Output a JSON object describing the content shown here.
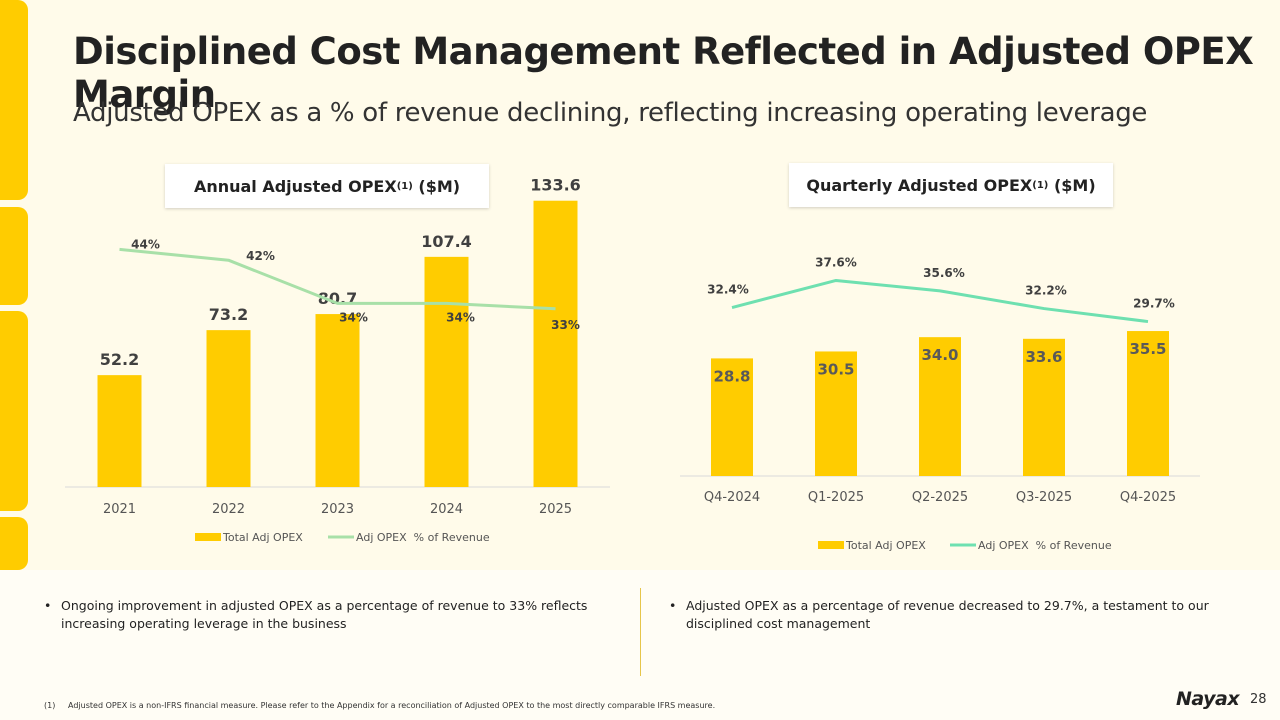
{
  "title": "Disciplined Cost Management Reflected in Adjusted OPEX Margin",
  "subtitle": "Adjusted OPEX as a % of revenue declining, reflecting increasing operating leverage",
  "panels": {
    "annual_title": "Annual Adjusted OPEX",
    "annual_sup": "(1)",
    "annual_unit": " ($M)",
    "quarterly_title": "Quarterly Adjusted OPEX",
    "quarterly_sup": "(1)",
    "quarterly_unit": " ($M)"
  },
  "chart_data": [
    {
      "type": "bar",
      "title": "Annual Adjusted OPEX(1) ($M)",
      "categories": [
        "2021",
        "2022",
        "2023",
        "2024",
        "2025"
      ],
      "series": [
        {
          "name": "Total Adj OPEX",
          "kind": "bar",
          "values": [
            52.2,
            73.2,
            80.7,
            107.4,
            133.6
          ],
          "labels": [
            "52.2",
            "73.2",
            "80.7",
            "107.4",
            "133.6"
          ]
        },
        {
          "name": "Adj OPEX  % of Revenue",
          "kind": "line",
          "values": [
            44,
            42,
            34,
            34,
            33
          ],
          "labels": [
            "44%",
            "42%",
            "34%",
            "34%",
            "33%"
          ]
        }
      ],
      "ylim": [
        0,
        140
      ],
      "line_ylim": [
        0,
        50
      ],
      "legend": "bottom",
      "bar_color": "#ffcc00",
      "line_color": "#a8e0a8"
    },
    {
      "type": "bar",
      "title": "Quarterly Adjusted OPEX(1) ($M)",
      "categories": [
        "Q4-2024",
        "Q1-2025",
        "Q2-2025",
        "Q3-2025",
        "Q4-2025"
      ],
      "series": [
        {
          "name": "Total Adj OPEX",
          "kind": "bar",
          "values": [
            28.8,
            30.5,
            34.0,
            33.6,
            35.5
          ],
          "labels": [
            "28.8",
            "30.5",
            "34.0",
            "33.6",
            "35.5"
          ]
        },
        {
          "name": "Adj OPEX  % of Revenue",
          "kind": "line",
          "values": [
            32.4,
            37.6,
            35.6,
            32.2,
            29.7
          ],
          "labels": [
            "32.4%",
            "37.6%",
            "35.6%",
            "32.2%",
            "29.7%"
          ]
        }
      ],
      "ylim": [
        0,
        120
      ],
      "line_ylim": [
        0,
        50
      ],
      "legend": "bottom",
      "bar_color": "#ffcc00",
      "line_color": "#6ee0b0"
    }
  ],
  "bullets": {
    "left": "Ongoing improvement in adjusted OPEX as a percentage of revenue to 33% reflects increasing operating leverage in the business",
    "right": "Adjusted OPEX as a percentage of revenue decreased to 29.7%, a testament to our disciplined cost management",
    "marker": "•"
  },
  "footnote": "(1)     Adjusted OPEX is a non-IFRS financial measure. Please refer to the Appendix for a reconciliation of Adjusted OPEX to the most directly comparable IFRS measure.",
  "logo": "Nayax",
  "page_number": "28"
}
